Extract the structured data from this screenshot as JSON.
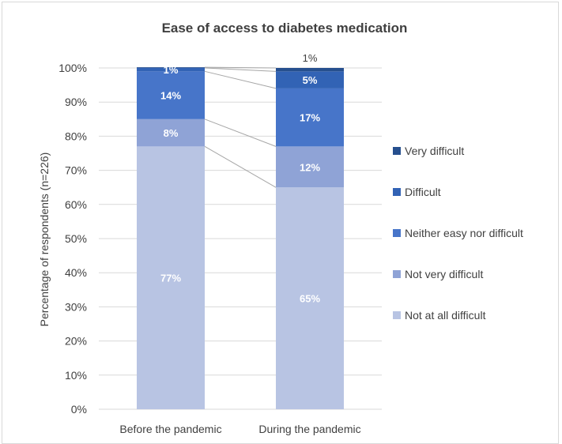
{
  "chart_data": {
    "type": "bar",
    "stacked": true,
    "title": "Ease of access to diabetes medication",
    "xlabel": "",
    "ylabel": "Percentage of respondents (n=226)",
    "categories": [
      "Before the pandemic",
      "During the pandemic"
    ],
    "ylim": [
      0,
      100
    ],
    "yticks": [
      "0%",
      "10%",
      "20%",
      "30%",
      "40%",
      "50%",
      "60%",
      "70%",
      "80%",
      "90%",
      "100%"
    ],
    "grid": true,
    "legend_position": "right",
    "series": [
      {
        "name": "Not at all difficult",
        "values": [
          77,
          65
        ],
        "labels": [
          "77%",
          "65%"
        ],
        "color": "#b8c4e3"
      },
      {
        "name": "Not very difficult",
        "values": [
          8,
          12
        ],
        "labels": [
          "8%",
          "12%"
        ],
        "color": "#8fa3d6"
      },
      {
        "name": "Neither easy nor difficult",
        "values": [
          14,
          17
        ],
        "labels": [
          "14%",
          "17%"
        ],
        "color": "#4775c9"
      },
      {
        "name": "Difficult",
        "values": [
          1,
          5
        ],
        "labels": [
          "1%",
          "5%"
        ],
        "color": "#3263b5"
      },
      {
        "name": "Very difficult",
        "values": [
          0.2,
          1
        ],
        "labels": [
          "",
          "1%"
        ],
        "color": "#264f8e"
      }
    ]
  }
}
